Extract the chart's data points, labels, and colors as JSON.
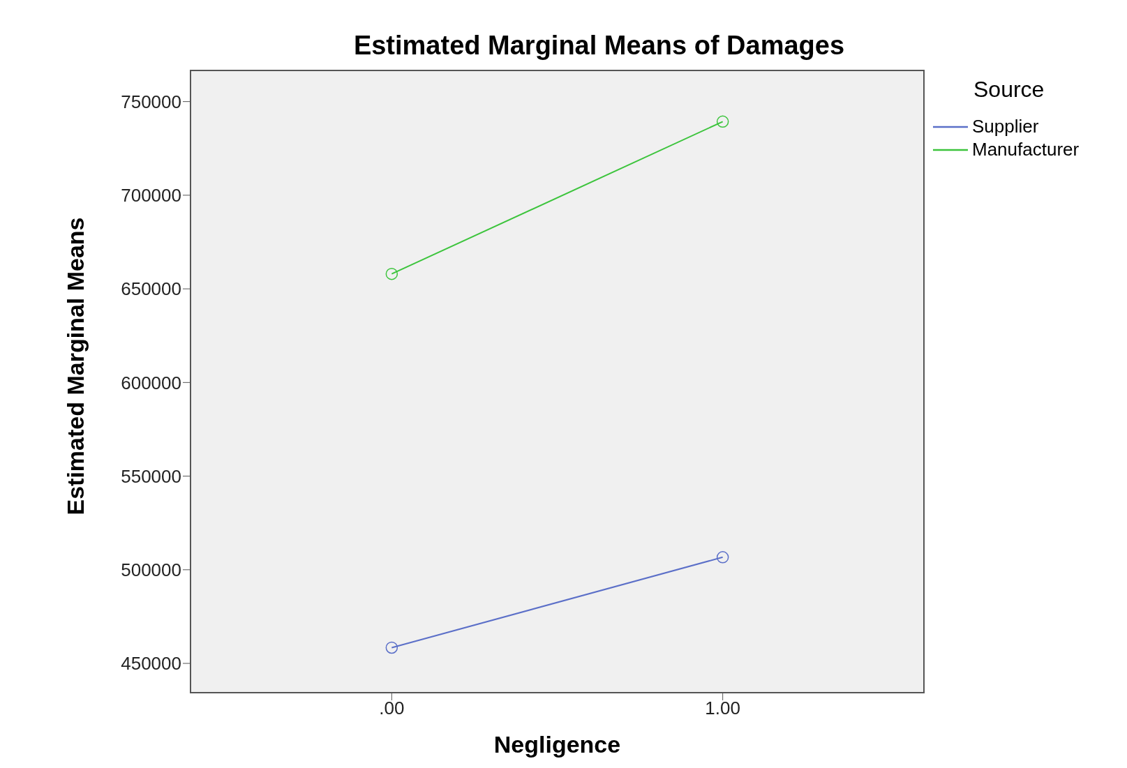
{
  "chart_data": {
    "type": "line",
    "title": "Estimated Marginal Means of Damages",
    "xlabel": "Negligence",
    "ylabel": "Estimated Marginal Means",
    "legend_title": "Source",
    "categories": [
      ".00",
      "1.00"
    ],
    "series": [
      {
        "name": "Supplier",
        "color": "#5b6fc8",
        "values": [
          458400,
          506700
        ]
      },
      {
        "name": "Manufacturer",
        "color": "#3cc43c",
        "values": [
          658000,
          739300
        ]
      }
    ],
    "ylim": [
      434000,
      767000
    ],
    "yticks": [
      450000,
      500000,
      550000,
      600000,
      650000,
      700000,
      750000
    ],
    "grid": false,
    "legend": "right",
    "marker": "circle",
    "line_style": "solid"
  }
}
